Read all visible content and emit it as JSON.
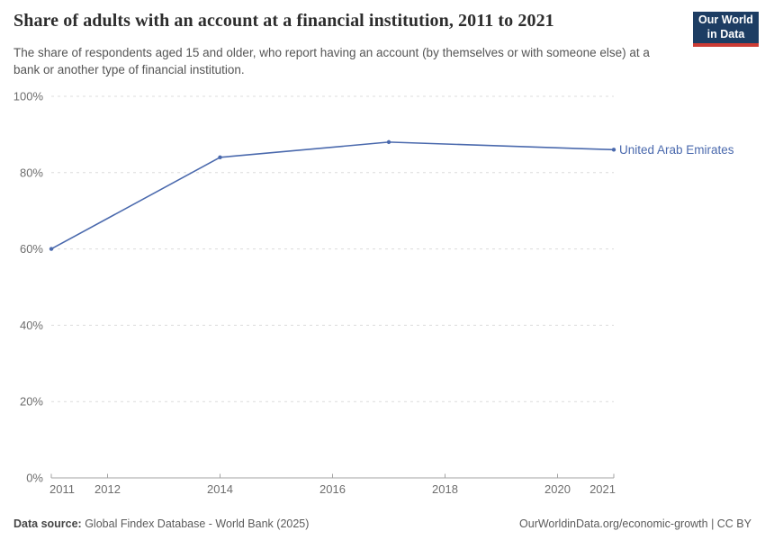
{
  "header": {
    "title": "Share of adults with an account at a financial institution, 2011 to 2021",
    "subtitle": "The share of respondents aged 15 and older, who report having an account (by themselves or with someone else) at a bank or another type of financial institution.",
    "logo": {
      "line1": "Our World",
      "line2": "in Data",
      "bg_color": "#1d3d63",
      "accent_color": "#cc3b34"
    }
  },
  "chart_data": {
    "type": "line",
    "title": "Share of adults with an account at a financial institution, 2011 to 2021",
    "xlabel": "",
    "ylabel": "",
    "xlim": [
      2011,
      2021
    ],
    "ylim": [
      0,
      100
    ],
    "xticks": [
      2011,
      2012,
      2014,
      2016,
      2018,
      2020,
      2021
    ],
    "yticks": [
      0,
      20,
      40,
      60,
      80,
      100
    ],
    "ytick_suffix": "%",
    "grid": "horizontal-dashed",
    "legend_position": "end-of-line-label",
    "colors": {
      "gridline": "#dcdcdc",
      "axis": "#a3a3a3",
      "tick_label": "#6e6e6e"
    },
    "series": [
      {
        "name": "United Arab Emirates",
        "color": "#4a69ad",
        "x": [
          2011,
          2014,
          2017,
          2021
        ],
        "values": [
          60,
          84,
          88,
          86
        ]
      }
    ]
  },
  "footer": {
    "source_label": "Data source:",
    "source_text": " Global Findex Database - World Bank (2025)",
    "right_text": "OurWorldinData.org/economic-growth | CC BY"
  }
}
